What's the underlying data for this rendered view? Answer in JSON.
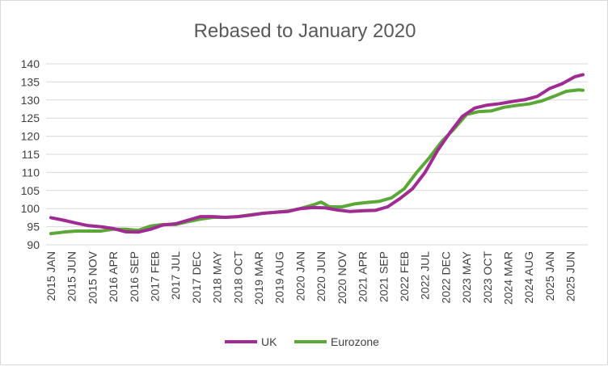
{
  "chart_data": {
    "type": "line",
    "title": "Rebased to January 2020",
    "xlabel": "",
    "ylabel": "",
    "ylim": [
      90,
      140
    ],
    "yticks": [
      90,
      95,
      100,
      105,
      110,
      115,
      120,
      125,
      130,
      135,
      140
    ],
    "x_tick_labels": [
      "2015 JAN",
      "2015 JUN",
      "2015 NOV",
      "2016 APR",
      "2016 SEP",
      "2017 FEB",
      "2017 JUL",
      "2017 DEC",
      "2018 MAY",
      "2018 OCT",
      "2019 MAR",
      "2019 AUG",
      "2020 JAN",
      "2020 JUN",
      "2020 NOV",
      "2021 APR",
      "2021 SEP",
      "2022 FEB",
      "2022 JUL",
      "2022 DEC",
      "2023 MAY",
      "2023 OCT",
      "2024 MAR",
      "2024 AUG",
      "2025 JAN",
      "2025 JUN"
    ],
    "x_start": "2015-01",
    "x_end": "2025-09",
    "grid": true,
    "legend_position": "bottom",
    "series": [
      {
        "name": "UK",
        "color": "#a02b93",
        "points": [
          [
            "2015-01",
            97.5
          ],
          [
            "2015-04",
            96.8
          ],
          [
            "2015-07",
            96.0
          ],
          [
            "2015-10",
            95.3
          ],
          [
            "2016-01",
            95.0
          ],
          [
            "2016-04",
            94.5
          ],
          [
            "2016-07",
            93.6
          ],
          [
            "2016-10",
            93.5
          ],
          [
            "2017-01",
            94.3
          ],
          [
            "2017-04",
            95.5
          ],
          [
            "2017-07",
            95.8
          ],
          [
            "2017-10",
            96.8
          ],
          [
            "2018-01",
            97.8
          ],
          [
            "2018-04",
            97.8
          ],
          [
            "2018-07",
            97.6
          ],
          [
            "2018-10",
            97.8
          ],
          [
            "2019-01",
            98.2
          ],
          [
            "2019-04",
            98.7
          ],
          [
            "2019-07",
            99.0
          ],
          [
            "2019-10",
            99.2
          ],
          [
            "2020-01",
            100.0
          ],
          [
            "2020-04",
            100.3
          ],
          [
            "2020-07",
            100.2
          ],
          [
            "2020-10",
            99.6
          ],
          [
            "2021-01",
            99.2
          ],
          [
            "2021-04",
            99.4
          ],
          [
            "2021-07",
            99.5
          ],
          [
            "2021-10",
            100.5
          ],
          [
            "2022-01",
            102.8
          ],
          [
            "2022-04",
            105.5
          ],
          [
            "2022-07",
            110.0
          ],
          [
            "2022-10",
            116.0
          ],
          [
            "2023-01",
            121.0
          ],
          [
            "2023-04",
            125.5
          ],
          [
            "2023-07",
            127.8
          ],
          [
            "2023-10",
            128.6
          ],
          [
            "2024-01",
            129.0
          ],
          [
            "2024-04",
            129.6
          ],
          [
            "2024-07",
            130.1
          ],
          [
            "2024-10",
            131.0
          ],
          [
            "2025-01",
            133.2
          ],
          [
            "2025-04",
            134.5
          ],
          [
            "2025-07",
            136.4
          ],
          [
            "2025-09",
            137.0
          ]
        ]
      },
      {
        "name": "Eurozone",
        "color": "#5ba838",
        "points": [
          [
            "2015-01",
            93.1
          ],
          [
            "2015-04",
            93.5
          ],
          [
            "2015-07",
            93.8
          ],
          [
            "2015-10",
            93.8
          ],
          [
            "2016-01",
            93.8
          ],
          [
            "2016-04",
            94.3
          ],
          [
            "2016-07",
            94.3
          ],
          [
            "2016-10",
            94.0
          ],
          [
            "2017-01",
            95.2
          ],
          [
            "2017-04",
            95.6
          ],
          [
            "2017-07",
            95.6
          ],
          [
            "2017-10",
            96.4
          ],
          [
            "2018-01",
            97.1
          ],
          [
            "2018-04",
            97.6
          ],
          [
            "2018-07",
            97.6
          ],
          [
            "2018-10",
            97.8
          ],
          [
            "2019-01",
            98.3
          ],
          [
            "2019-04",
            98.7
          ],
          [
            "2019-07",
            99.0
          ],
          [
            "2019-10",
            99.3
          ],
          [
            "2020-01",
            100.0
          ],
          [
            "2020-04",
            101.0
          ],
          [
            "2020-06",
            101.8
          ],
          [
            "2020-08",
            100.5
          ],
          [
            "2020-11",
            100.5
          ],
          [
            "2021-02",
            101.3
          ],
          [
            "2021-05",
            101.7
          ],
          [
            "2021-08",
            102.0
          ],
          [
            "2021-11",
            103.0
          ],
          [
            "2022-02",
            105.5
          ],
          [
            "2022-05",
            110.0
          ],
          [
            "2022-08",
            114.0
          ],
          [
            "2022-11",
            118.5
          ],
          [
            "2023-02",
            122.0
          ],
          [
            "2023-05",
            126.0
          ],
          [
            "2023-08",
            126.8
          ],
          [
            "2023-11",
            127.0
          ],
          [
            "2024-02",
            128.0
          ],
          [
            "2024-05",
            128.5
          ],
          [
            "2024-08",
            128.9
          ],
          [
            "2024-11",
            129.7
          ],
          [
            "2025-02",
            131.0
          ],
          [
            "2025-05",
            132.4
          ],
          [
            "2025-08",
            132.8
          ],
          [
            "2025-09",
            132.7
          ]
        ]
      }
    ]
  }
}
